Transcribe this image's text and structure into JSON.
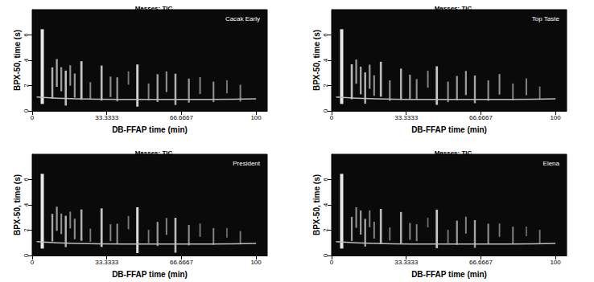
{
  "chart_data": [
    {
      "type": "scatter",
      "title": "Masses: TIC",
      "subtitle": "Cacak Early",
      "x_label": "DB-FFAP time (min)",
      "y_label": "BPX-50, time (s)",
      "xlim": [
        0,
        105
      ],
      "xticks": [
        0,
        33.3333,
        66.6667,
        100
      ],
      "ylim": [
        0,
        8
      ],
      "yticks": [
        0,
        2,
        4,
        6
      ],
      "grid": false,
      "series": [
        {
          "type": "scatter",
          "marker": "rect",
          "color": "#e8e8e8",
          "x": [
            4.5,
            9,
            11,
            13,
            15,
            17,
            19,
            22,
            26,
            31,
            35,
            38,
            43,
            47,
            52,
            56,
            60,
            64,
            70,
            75,
            81,
            87,
            93
          ],
          "values": [
            3.5,
            2.2,
            3.0,
            2.5,
            1.8,
            2.8,
            2.0,
            2.4,
            1.6,
            2.2,
            1.9,
            1.7,
            2.6,
            2.0,
            1.5,
            1.8,
            2.3,
            1.7,
            1.6,
            2.0,
            1.5,
            1.9,
            1.4
          ],
          "intensity": [
            100,
            40,
            35,
            30,
            45,
            25,
            30,
            50,
            20,
            45,
            25,
            30,
            15,
            55,
            20,
            35,
            25,
            40,
            30,
            20,
            25,
            15,
            20
          ]
        },
        {
          "type": "line",
          "color": "#bdbdbd",
          "x": [
            2,
            20,
            40,
            60,
            80,
            100
          ],
          "values": [
            1.1,
            0.95,
            0.9,
            0.9,
            0.9,
            0.95
          ]
        }
      ]
    },
    {
      "type": "scatter",
      "title": "Masses: TIC",
      "subtitle": "Top Taste",
      "x_label": "DB-FFAP time (min)",
      "y_label": "BPX-50, time (s)",
      "xlim": [
        0,
        105
      ],
      "xticks": [
        0,
        33.3333,
        66.6667,
        100
      ],
      "ylim": [
        0,
        8
      ],
      "yticks": [
        0,
        2,
        4,
        6
      ],
      "grid": false,
      "series": [
        {
          "type": "scatter",
          "marker": "rect",
          "color": "#e8e8e8",
          "x": [
            4.5,
            9,
            11,
            13,
            15,
            17,
            19,
            22,
            26,
            31,
            35,
            38,
            43,
            47,
            52,
            56,
            60,
            64,
            70,
            75,
            81,
            87,
            93
          ],
          "values": [
            3.5,
            2.3,
            3.1,
            2.4,
            1.8,
            2.7,
            2.0,
            2.5,
            1.6,
            2.1,
            1.9,
            1.7,
            2.5,
            2.0,
            1.5,
            1.8,
            2.2,
            1.7,
            1.6,
            2.1,
            1.5,
            1.9,
            1.4
          ],
          "intensity": [
            100,
            45,
            30,
            35,
            40,
            30,
            25,
            45,
            25,
            40,
            30,
            25,
            20,
            50,
            25,
            30,
            30,
            35,
            25,
            25,
            20,
            20,
            15
          ]
        },
        {
          "type": "line",
          "color": "#bdbdbd",
          "x": [
            2,
            20,
            40,
            60,
            80,
            100
          ],
          "values": [
            1.1,
            0.95,
            0.9,
            0.9,
            0.9,
            0.95
          ]
        }
      ]
    },
    {
      "type": "scatter",
      "title": "Masses: TIC",
      "subtitle": "President",
      "x_label": "DB-FFAP time (min)",
      "y_label": "BPX-50, time (s)",
      "xlim": [
        0,
        105
      ],
      "xticks": [
        0,
        33.3333,
        66.6667,
        100
      ],
      "ylim": [
        0,
        8
      ],
      "yticks": [
        0,
        2,
        4,
        6
      ],
      "grid": false,
      "series": [
        {
          "type": "scatter",
          "marker": "rect",
          "color": "#e8e8e8",
          "x": [
            4.5,
            9,
            11,
            13,
            15,
            17,
            19,
            22,
            26,
            31,
            35,
            38,
            43,
            47,
            52,
            56,
            60,
            64,
            70,
            75,
            81,
            87,
            93
          ],
          "values": [
            3.5,
            2.2,
            2.9,
            2.5,
            1.9,
            2.8,
            2.1,
            2.4,
            1.6,
            2.2,
            1.8,
            1.7,
            2.6,
            2.0,
            1.5,
            1.7,
            2.3,
            1.6,
            1.6,
            2.0,
            1.5,
            1.8,
            1.4
          ],
          "intensity": [
            100,
            35,
            30,
            25,
            40,
            20,
            25,
            40,
            15,
            50,
            20,
            25,
            15,
            60,
            15,
            30,
            20,
            45,
            25,
            15,
            20,
            10,
            15
          ]
        },
        {
          "type": "line",
          "color": "#bdbdbd",
          "x": [
            2,
            20,
            40,
            60,
            80,
            100
          ],
          "values": [
            1.1,
            0.95,
            0.9,
            0.9,
            0.9,
            0.95
          ]
        }
      ]
    },
    {
      "type": "scatter",
      "title": "Masses: TIC",
      "subtitle": "Elena",
      "x_label": "DB-FFAP time (min)",
      "y_label": "BPX-50, time (s)",
      "xlim": [
        0,
        105
      ],
      "xticks": [
        0,
        33.3333,
        66.6667,
        100
      ],
      "ylim": [
        0,
        8
      ],
      "yticks": [
        0,
        2,
        4,
        6
      ],
      "grid": false,
      "series": [
        {
          "type": "scatter",
          "marker": "rect",
          "color": "#e8e8e8",
          "x": [
            4.5,
            9,
            11,
            13,
            15,
            17,
            19,
            22,
            26,
            31,
            35,
            38,
            43,
            47,
            52,
            56,
            60,
            64,
            70,
            75,
            81,
            87,
            93
          ],
          "values": [
            3.5,
            2.1,
            3.0,
            2.6,
            1.8,
            2.9,
            2.0,
            2.3,
            1.7,
            2.2,
            1.9,
            1.8,
            2.6,
            2.1,
            1.5,
            1.8,
            2.4,
            1.7,
            1.7,
            2.0,
            1.6,
            1.9,
            1.5
          ],
          "intensity": [
            100,
            30,
            25,
            30,
            35,
            20,
            20,
            45,
            15,
            40,
            20,
            20,
            10,
            50,
            15,
            30,
            20,
            35,
            25,
            15,
            20,
            10,
            15
          ]
        },
        {
          "type": "line",
          "color": "#bdbdbd",
          "x": [
            2,
            20,
            40,
            60,
            80,
            100
          ],
          "values": [
            1.1,
            0.95,
            0.9,
            0.9,
            0.9,
            0.95
          ]
        }
      ]
    }
  ]
}
